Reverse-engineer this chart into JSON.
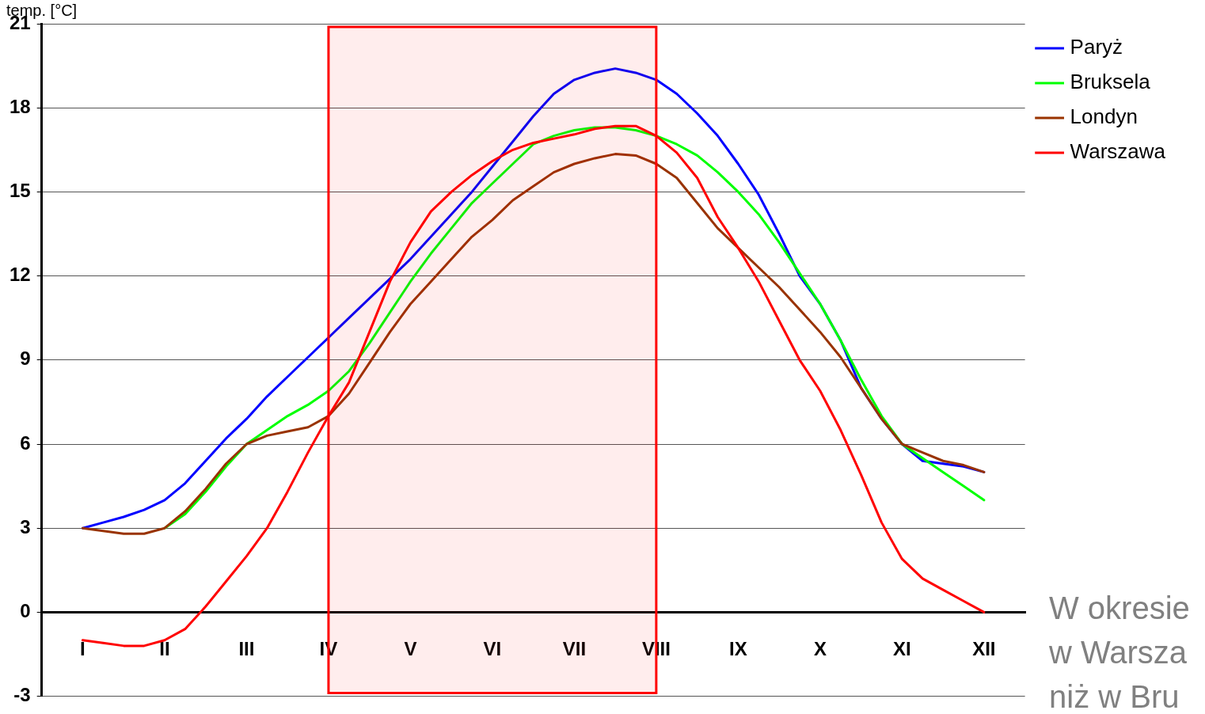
{
  "chart_data": {
    "type": "line",
    "ylabel": "temp. [°C]",
    "categories": [
      "I",
      null,
      null,
      null,
      "II",
      null,
      null,
      null,
      "III",
      null,
      null,
      null,
      "IV",
      null,
      null,
      null,
      "V",
      null,
      null,
      null,
      "VI",
      null,
      null,
      null,
      "VII",
      null,
      null,
      null,
      "VIII",
      null,
      null,
      null,
      "IX",
      null,
      null,
      null,
      "X",
      null,
      null,
      null,
      "XI",
      null,
      null,
      null,
      "XII"
    ],
    "series": [
      {
        "name": "Paryż",
        "color": "#0000ff",
        "values": [
          3.0,
          3.2,
          3.4,
          3.65,
          4.0,
          4.6,
          5.4,
          6.2,
          6.9,
          7.7,
          8.4,
          9.1,
          9.8,
          10.5,
          11.2,
          11.9,
          12.6,
          13.4,
          14.2,
          15.0,
          15.9,
          16.8,
          17.7,
          18.5,
          19.0,
          19.25,
          19.4,
          19.25,
          19.0,
          18.5,
          17.8,
          17.0,
          16.0,
          14.9,
          13.5,
          12.0,
          11.0,
          9.7,
          8.0,
          6.9,
          6.0,
          5.4,
          5.3,
          5.2,
          5.0
        ]
      },
      {
        "name": "Bruksela",
        "color": "#00ff00",
        "values": [
          null,
          null,
          null,
          null,
          3.0,
          3.5,
          4.3,
          5.2,
          6.0,
          6.5,
          7.0,
          7.4,
          7.9,
          8.6,
          9.6,
          10.7,
          11.8,
          12.8,
          13.7,
          14.6,
          15.3,
          16.0,
          16.7,
          17.0,
          17.2,
          17.3,
          17.3,
          17.2,
          17.0,
          16.7,
          16.3,
          15.7,
          15.0,
          14.2,
          13.2,
          12.1,
          11.0,
          9.7,
          8.3,
          7.0,
          6.0,
          5.5,
          5.0,
          4.5,
          4.0
        ]
      },
      {
        "name": "Londyn",
        "color": "#993300",
        "values": [
          3.0,
          2.9,
          2.8,
          2.8,
          3.0,
          3.6,
          4.4,
          5.3,
          6.0,
          6.3,
          6.45,
          6.6,
          7.0,
          7.8,
          8.9,
          10.0,
          11.0,
          11.8,
          12.6,
          13.4,
          14.0,
          14.7,
          15.2,
          15.7,
          16.0,
          16.2,
          16.35,
          16.3,
          16.0,
          15.5,
          14.6,
          13.7,
          13.0,
          12.3,
          11.6,
          10.8,
          10.0,
          9.1,
          8.0,
          6.9,
          6.0,
          5.7,
          5.4,
          5.25,
          5.0
        ]
      },
      {
        "name": "Warszawa",
        "color": "#ff0000",
        "values": [
          -1.0,
          -1.1,
          -1.2,
          -1.2,
          -1.0,
          -0.6,
          0.2,
          1.1,
          2.0,
          3.0,
          4.3,
          5.7,
          7.0,
          8.2,
          10.0,
          11.8,
          13.2,
          14.3,
          15.0,
          15.6,
          16.1,
          16.5,
          16.75,
          16.9,
          17.05,
          17.25,
          17.35,
          17.35,
          17.0,
          16.4,
          15.5,
          14.1,
          13.0,
          11.8,
          10.4,
          9.0,
          7.9,
          6.5,
          4.9,
          3.2,
          1.9,
          1.2,
          0.8,
          0.4,
          0.0
        ]
      }
    ],
    "ylim": [
      -3,
      21
    ],
    "yticks": [
      -3,
      0,
      3,
      6,
      9,
      12,
      15,
      18,
      21
    ],
    "bands": [
      {
        "axis": "x",
        "from": "IV",
        "to": "VIII",
        "color": "#ff0000"
      }
    ],
    "grid": "y",
    "legend": "top right",
    "marker": "none",
    "line_style": "solid",
    "annotations": [
      "W okresie",
      "w Warsza",
      "niż w Bru"
    ]
  }
}
